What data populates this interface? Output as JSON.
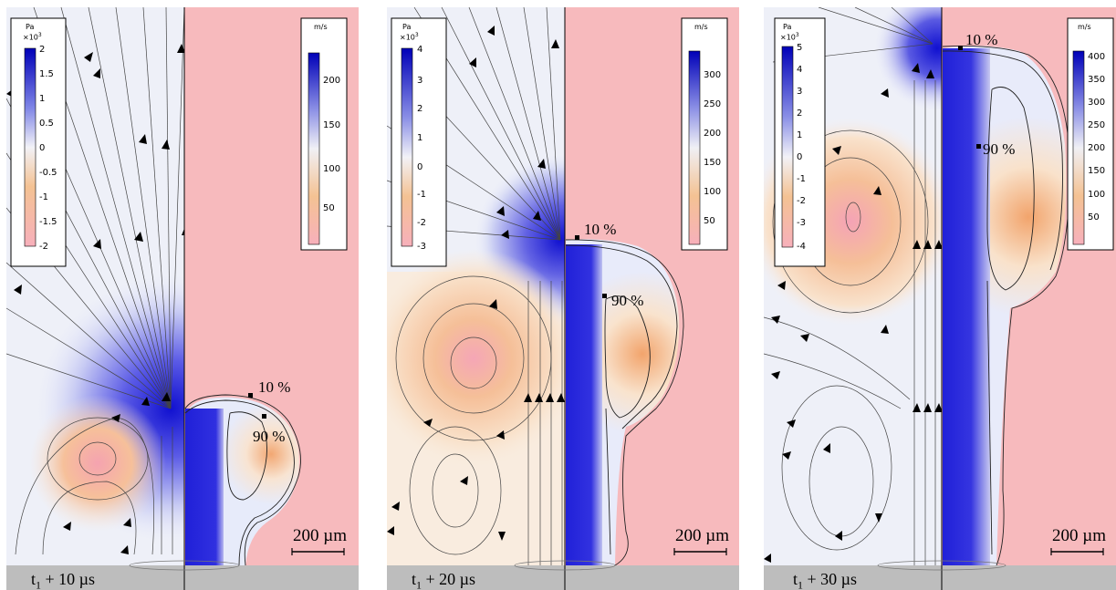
{
  "panels": [
    {
      "time_base": "t",
      "time_sub": "1",
      "time_rest": " + 10 µs",
      "left_colorbar": {
        "unit": "Pa",
        "exponent_base": "×10",
        "exponent_power": "3",
        "ticks": [
          "2",
          "1.5",
          "1",
          "0.5",
          "0",
          "-0.5",
          "-1",
          "-1.5",
          "-2"
        ]
      },
      "right_colorbar": {
        "unit": "m/s",
        "ticks": [
          "200",
          "150",
          "100",
          "50"
        ]
      },
      "contour_labels": [
        "10 %",
        "90 %"
      ],
      "scale_bar": "200 µm"
    },
    {
      "time_base": "t",
      "time_sub": "1",
      "time_rest": " + 20 µs",
      "left_colorbar": {
        "unit": "Pa",
        "exponent_base": "×10",
        "exponent_power": "3",
        "ticks": [
          "4",
          "3",
          "2",
          "1",
          "0",
          "-1",
          "-2",
          "-3"
        ]
      },
      "right_colorbar": {
        "unit": "m/s",
        "ticks": [
          "300",
          "250",
          "200",
          "150",
          "100",
          "50"
        ]
      },
      "contour_labels": [
        "10 %",
        "90 %"
      ],
      "scale_bar": "200 µm"
    },
    {
      "time_base": "t",
      "time_sub": "1",
      "time_rest": " + 30 µs",
      "left_colorbar": {
        "unit": "Pa",
        "exponent_base": "×10",
        "exponent_power": "3",
        "ticks": [
          "5",
          "4",
          "3",
          "2",
          "1",
          "0",
          "-1",
          "-2",
          "-3",
          "-4"
        ]
      },
      "right_colorbar": {
        "unit": "m/s",
        "ticks": [
          "400",
          "350",
          "300",
          "250",
          "200",
          "150",
          "100",
          "50"
        ]
      },
      "contour_labels": [
        "10 %",
        "90 %"
      ],
      "scale_bar": "200 µm"
    }
  ],
  "colors": {
    "pressure_high": "#1010d0",
    "pressure_low": "#f7b0b6",
    "velocity_bg": "#f7babd",
    "ground": "#bdbdbd",
    "plume_core": "#2020d8"
  }
}
